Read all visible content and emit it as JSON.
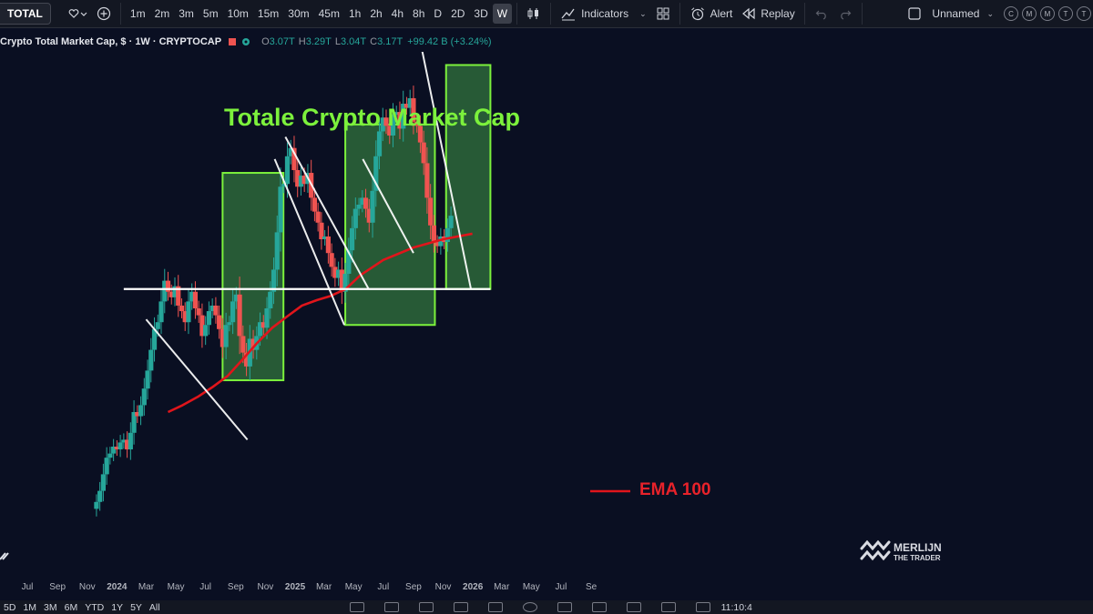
{
  "toolbar": {
    "symbol": "TOTAL",
    "intervals": [
      "1m",
      "2m",
      "3m",
      "5m",
      "10m",
      "15m",
      "30m",
      "45m",
      "1h",
      "2h",
      "4h",
      "8h",
      "D",
      "2D",
      "3D",
      "W"
    ],
    "active_interval": "W",
    "indicators_label": "Indicators",
    "alert_label": "Alert",
    "replay_label": "Replay",
    "layout_name": "Unnamed",
    "mode_buttons": [
      "C",
      "M",
      "M",
      "T",
      "T"
    ]
  },
  "legend": {
    "title": "Crypto Total Market Cap, $ · 1W · CRYPTOCAP",
    "o_label": "O",
    "o_value": "3.07T",
    "h_label": "H",
    "h_value": "3.29T",
    "l_label": "L",
    "l_value": "3.04T",
    "c_label": "C",
    "c_value": "3.17T",
    "change": "+99.42 B (+3.24%)"
  },
  "annotations": {
    "chart_title": "Totale Crypto Market Cap",
    "ema_label": "EMA 100",
    "watermark_line1": "MERLIJN",
    "watermark_line2": "THE TRADER"
  },
  "bottombar": {
    "ranges": [
      "5D",
      "1M",
      "3M",
      "6M",
      "YTD",
      "1Y",
      "5Y",
      "All"
    ],
    "clock": "11:10:4"
  },
  "colors": {
    "background": "#0a0f22",
    "up": "#26a69a",
    "down": "#ef5350",
    "ema": "#e0151b",
    "box_stroke": "#7cf13c",
    "box_fill": "#2e6b3a",
    "title_green": "#7cf13c",
    "ema_text": "#e8222a"
  },
  "chart_data": {
    "type": "candlestick",
    "interval": "1W",
    "series_name": "Crypto Total Market Cap",
    "x_tick_labels": [
      "Jul",
      "Sep",
      "Nov",
      "2024",
      "Mar",
      "May",
      "Jul",
      "Sep",
      "Nov",
      "2025",
      "Mar",
      "May",
      "Jul",
      "Sep",
      "Nov",
      "2026",
      "Mar",
      "May",
      "Jul",
      "Se"
    ],
    "x_tick_dates": [
      "2023-07-01",
      "2023-09-01",
      "2023-11-01",
      "2024-01-01",
      "2024-03-01",
      "2024-05-01",
      "2024-07-01",
      "2024-09-01",
      "2024-11-01",
      "2025-01-01",
      "2025-03-01",
      "2025-05-01",
      "2025-07-01",
      "2025-09-01",
      "2025-11-01",
      "2026-01-01",
      "2026-03-01",
      "2026-05-01",
      "2026-07-01",
      "2026-09-01"
    ],
    "y_unit": "USD (T)",
    "ylim": [
      0.95,
      4.15
    ],
    "y_axis_labels_shown": false,
    "closes_trillions": [
      1.1,
      1.18,
      1.3,
      1.42,
      1.45,
      1.5,
      1.48,
      1.53,
      1.55,
      1.48,
      1.6,
      1.75,
      1.72,
      1.8,
      1.92,
      2.05,
      2.2,
      2.35,
      2.4,
      2.55,
      2.7,
      2.62,
      2.58,
      2.66,
      2.52,
      2.48,
      2.4,
      2.55,
      2.62,
      2.5,
      2.45,
      2.3,
      2.38,
      2.48,
      2.52,
      2.45,
      2.35,
      2.22,
      2.38,
      2.4,
      2.55,
      2.6,
      2.3,
      2.18,
      2.08,
      2.28,
      2.2,
      2.3,
      2.4,
      2.36,
      2.5,
      2.62,
      2.78,
      3.05,
      3.38,
      3.4,
      3.6,
      3.66,
      3.5,
      3.38,
      3.46,
      3.4,
      3.48,
      3.3,
      3.2,
      3.12,
      3.0,
      3.02,
      2.9,
      2.8,
      2.72,
      2.78,
      2.62,
      2.75,
      2.92,
      3.08,
      3.22,
      3.25,
      3.3,
      3.22,
      3.12,
      3.35,
      3.6,
      3.78,
      3.88,
      3.82,
      3.75,
      3.9,
      3.92,
      3.8,
      3.98,
      3.95,
      4.02,
      3.85,
      3.82,
      3.7,
      3.55,
      3.3,
      3.1,
      2.98,
      2.95,
      3.02,
      2.98,
      3.08,
      3.17
    ],
    "ema100_trillions": [
      1.75,
      1.8,
      1.86,
      1.93,
      2.01,
      2.13,
      2.25,
      2.36,
      2.44,
      2.52,
      2.56,
      2.59,
      2.64,
      2.74,
      2.85,
      2.94,
      3.0,
      3.04
    ],
    "ema100_dates": [
      "2024-04-15",
      "2024-05-15",
      "2024-06-15",
      "2024-07-15",
      "2024-08-15",
      "2024-09-15",
      "2024-10-15",
      "2024-11-15",
      "2024-12-15",
      "2025-01-15",
      "2025-02-15",
      "2025-03-15",
      "2025-04-15",
      "2025-05-15",
      "2025-07-01",
      "2025-09-01",
      "2025-11-01",
      "2025-12-31"
    ],
    "support_level_trillions": 2.64,
    "highlight_boxes": [
      {
        "start": "2024-08-05",
        "end": "2024-12-08",
        "low": 1.98,
        "high": 3.48
      },
      {
        "start": "2025-04-14",
        "end": "2025-10-15",
        "low": 2.38,
        "high": 3.83
      },
      {
        "start": "2025-11-07",
        "end": "2026-02-06",
        "low": 2.64,
        "high": 4.26
      }
    ],
    "trend_lines": [
      {
        "from": [
          "2024-03-01",
          2.42
        ],
        "to": [
          "2024-09-25",
          1.55
        ]
      },
      {
        "from": [
          "2024-11-20",
          3.58
        ],
        "to": [
          "2025-04-12",
          2.38
        ]
      },
      {
        "from": [
          "2024-12-12",
          3.74
        ],
        "to": [
          "2025-06-01",
          2.64
        ]
      },
      {
        "from": [
          "2025-05-20",
          3.58
        ],
        "to": [
          "2025-09-01",
          2.9
        ]
      },
      {
        "from": [
          "2025-09-15",
          4.43
        ],
        "to": [
          "2025-12-28",
          2.64
        ]
      }
    ]
  }
}
